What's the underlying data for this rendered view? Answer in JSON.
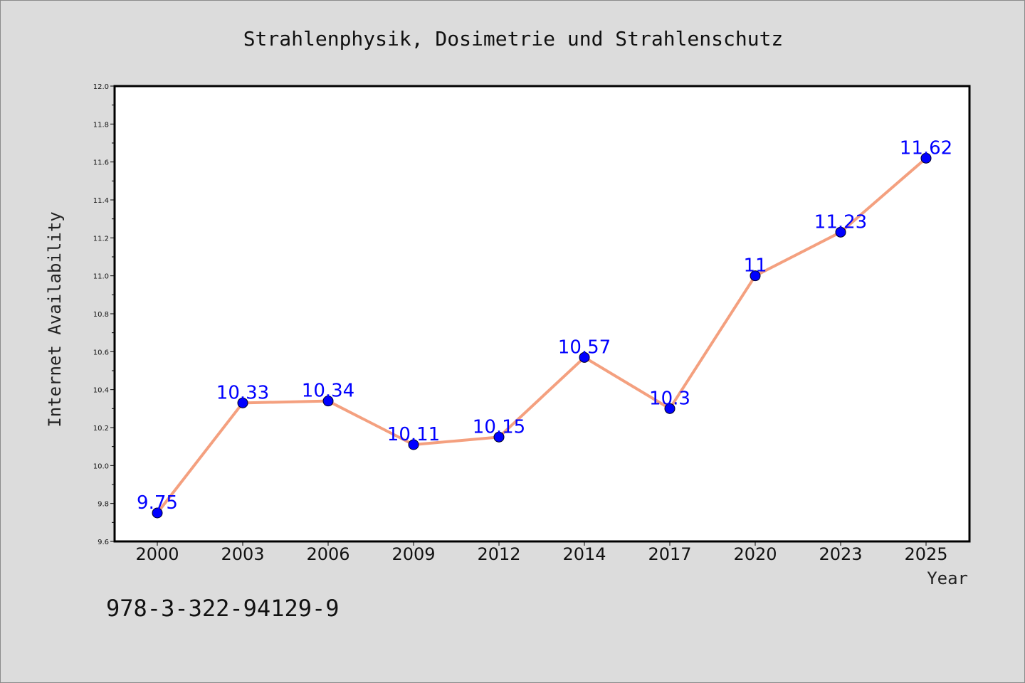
{
  "colors": {
    "background": "#dcdcdc",
    "plot_background": "#ffffff",
    "line": "#f4a07f",
    "marker": "#0000ff",
    "data_label": "#0000ff"
  },
  "footer": {
    "isbn": "978-3-322-94129-9"
  },
  "chart_data": {
    "type": "line",
    "title": "Strahlenphysik, Dosimetrie und Strahlenschutz",
    "xlabel": "Year",
    "ylabel": "Internet Availability",
    "categories": [
      "2000",
      "2003",
      "2006",
      "2009",
      "2012",
      "2014",
      "2017",
      "2020",
      "2023",
      "2025"
    ],
    "series": [
      {
        "values": [
          9.75,
          10.33,
          10.34,
          10.11,
          10.15,
          10.57,
          10.3,
          11,
          11.23,
          11.62
        ]
      }
    ],
    "data_labels": [
      "9.75",
      "10.33",
      "10.34",
      "10.11",
      "10.15",
      "10.57",
      "10.3",
      "11",
      "11.23",
      "11.62"
    ],
    "ylim": [
      9.6,
      12.0
    ],
    "yticks": [
      9.6,
      9.8,
      10.0,
      10.2,
      10.4,
      10.6,
      10.8,
      11.0,
      11.2,
      11.4,
      11.6,
      11.8,
      12.0
    ],
    "ytick_labels": [
      "9.6",
      "9.8",
      "10.0",
      "10.2",
      "10.4",
      "10.6",
      "10.8",
      "11.0",
      "11.2",
      "11.4",
      "11.6",
      "11.8",
      "12.0"
    ],
    "grid": false,
    "legend": "none"
  }
}
